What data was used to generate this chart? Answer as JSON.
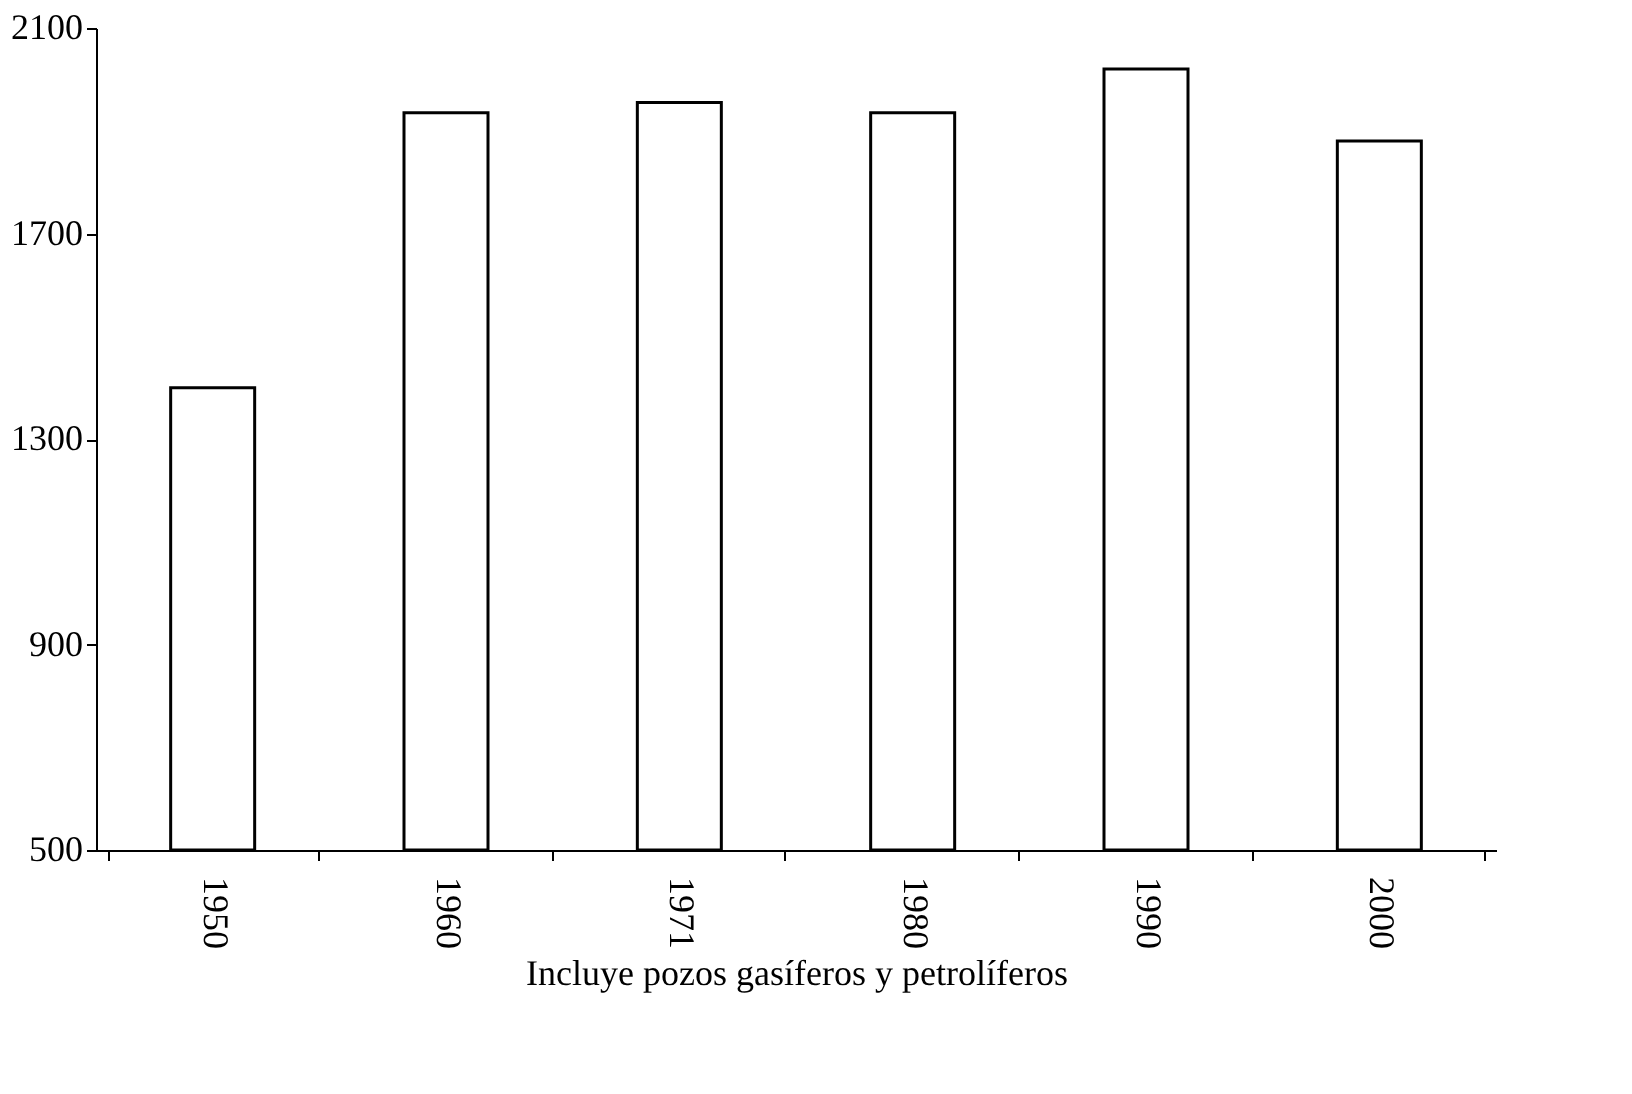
{
  "chart_data": {
    "type": "bar",
    "xlabel": "Incluye pozos gasíferos y petrolíferos",
    "categories": [
      "1950",
      "1960",
      "1971",
      "1980",
      "1990",
      "2000"
    ],
    "values": [
      1400,
      1935,
      1955,
      1935,
      2020,
      1880
    ],
    "color": "#ffffff",
    "ylim": [
      500,
      2100
    ],
    "yticks": [
      500,
      900,
      1300,
      1700,
      2100
    ],
    "grid": false
  }
}
